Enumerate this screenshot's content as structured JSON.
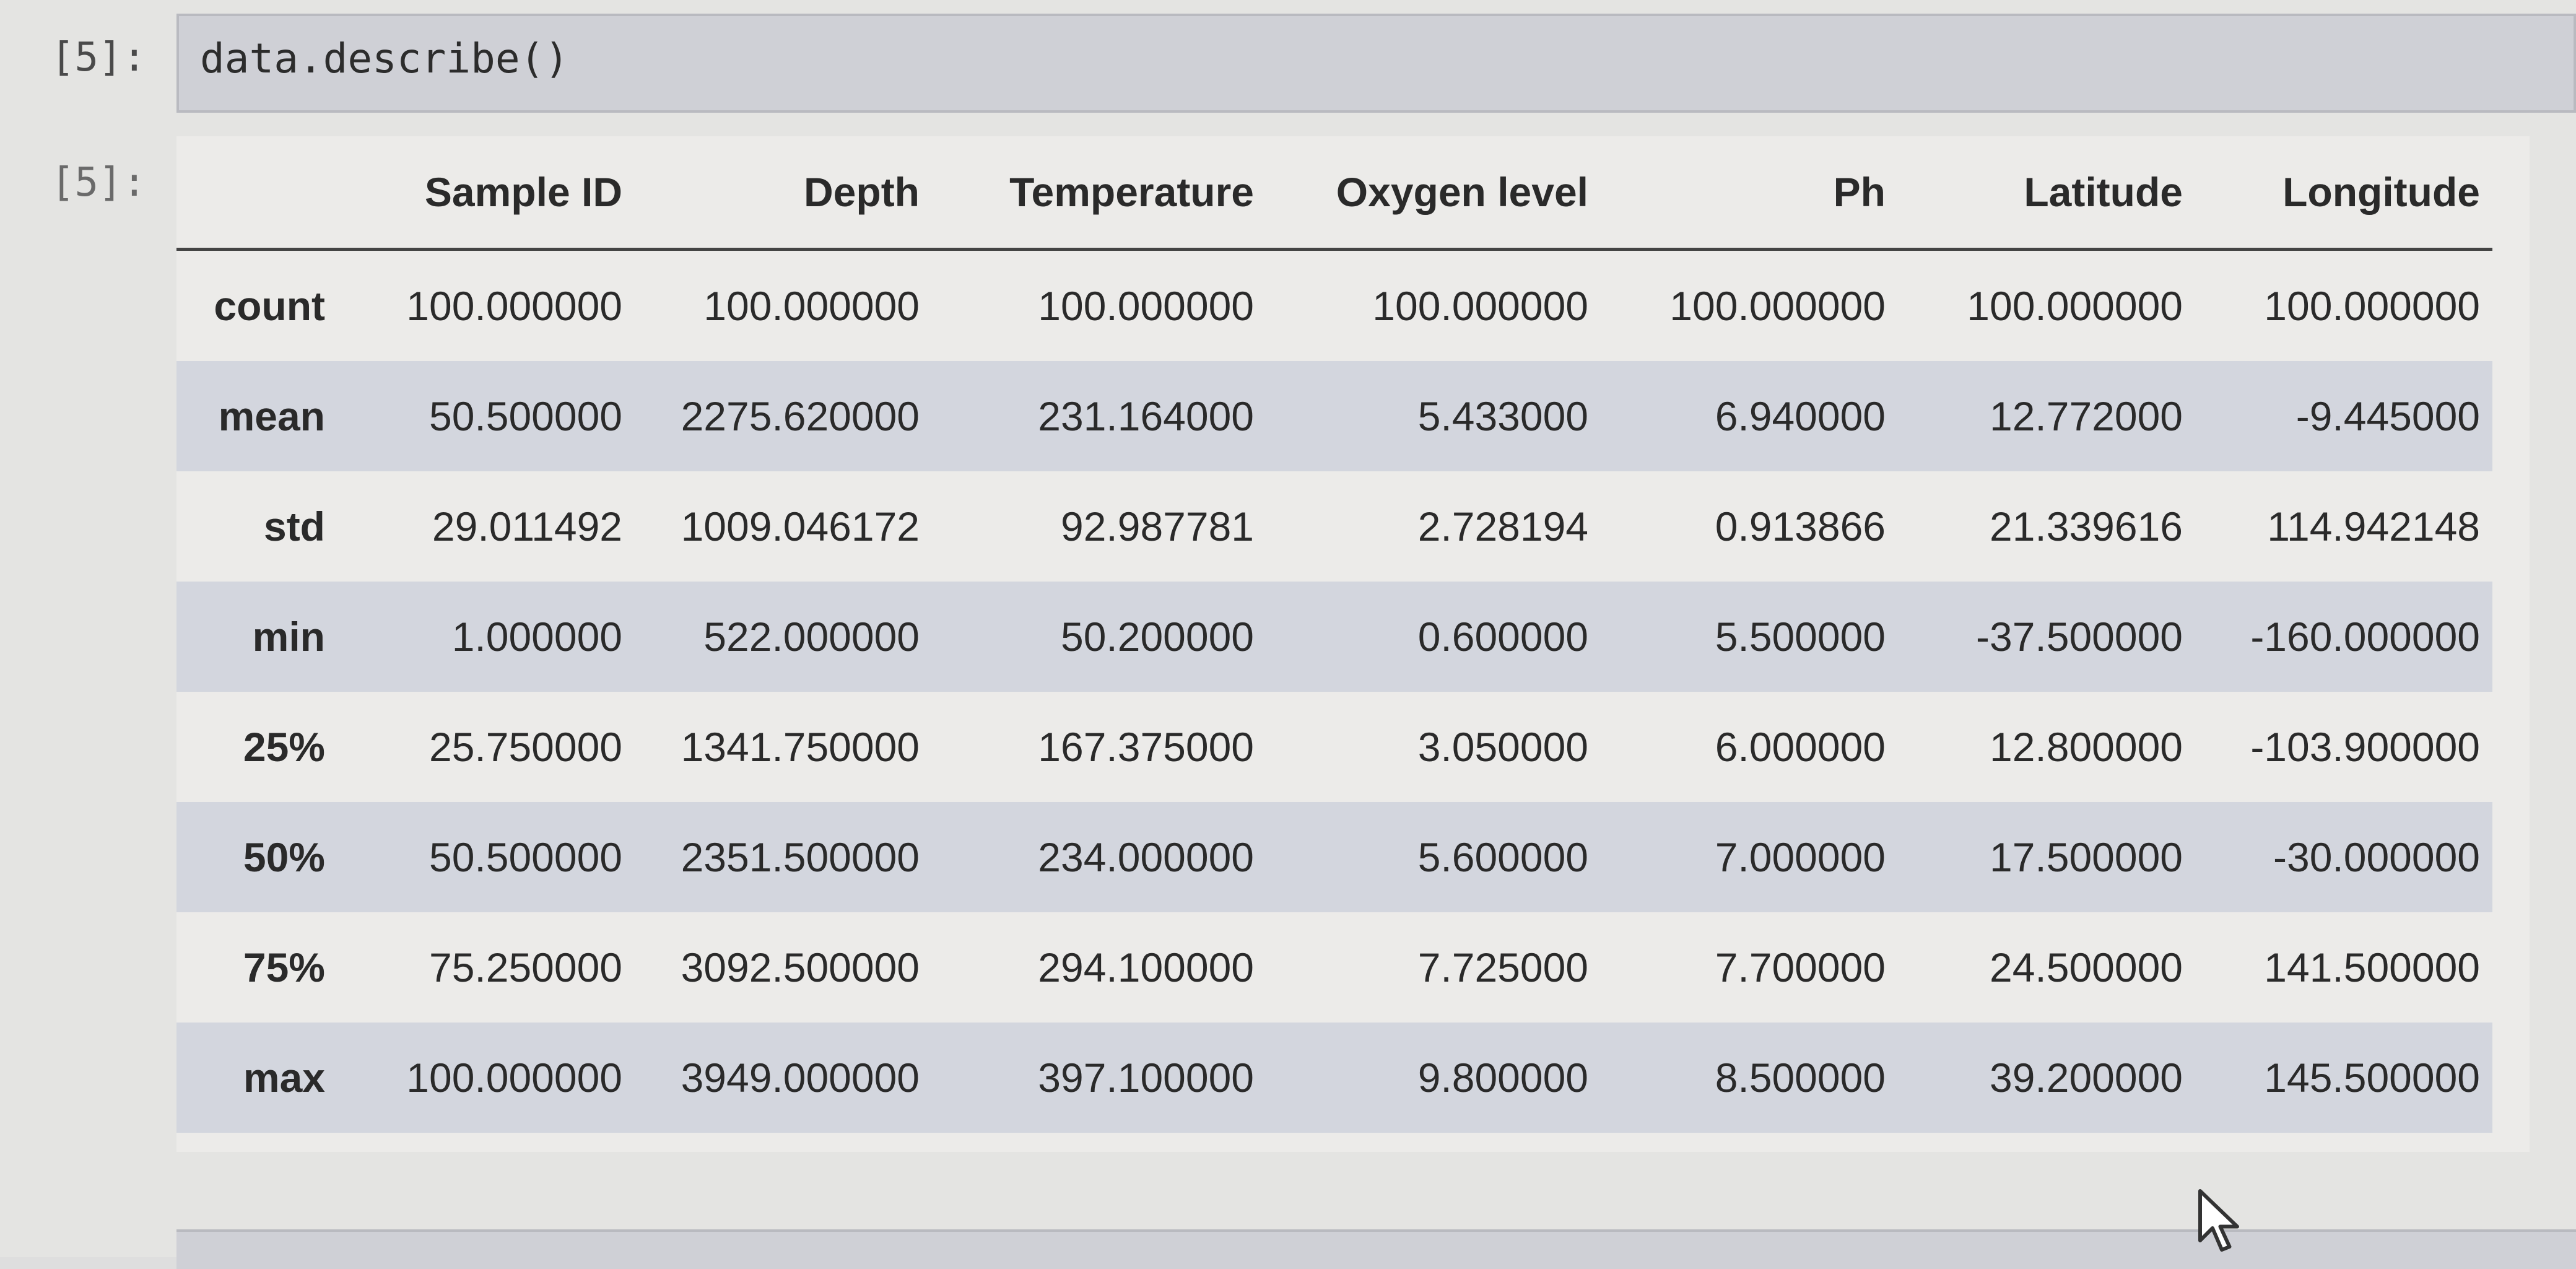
{
  "input_cell": {
    "prompt": "[5]:",
    "code": "data.describe()"
  },
  "output_cell": {
    "prompt": "[5]:"
  },
  "table": {
    "columns": [
      "",
      "Sample ID",
      "Depth",
      "Temperature",
      "Oxygen level",
      "Ph",
      "Latitude",
      "Longitude"
    ],
    "rows": [
      {
        "label": "count",
        "values": [
          "100.000000",
          "100.000000",
          "100.000000",
          "100.000000",
          "100.000000",
          "100.000000",
          "100.000000"
        ]
      },
      {
        "label": "mean",
        "values": [
          "50.500000",
          "2275.620000",
          "231.164000",
          "5.433000",
          "6.940000",
          "12.772000",
          "-9.445000"
        ]
      },
      {
        "label": "std",
        "values": [
          "29.011492",
          "1009.046172",
          "92.987781",
          "2.728194",
          "0.913866",
          "21.339616",
          "114.942148"
        ]
      },
      {
        "label": "min",
        "values": [
          "1.000000",
          "522.000000",
          "50.200000",
          "0.600000",
          "5.500000",
          "-37.500000",
          "-160.000000"
        ]
      },
      {
        "label": "25%",
        "values": [
          "25.750000",
          "1341.750000",
          "167.375000",
          "3.050000",
          "6.000000",
          "12.800000",
          "-103.900000"
        ]
      },
      {
        "label": "50%",
        "values": [
          "50.500000",
          "2351.500000",
          "234.000000",
          "5.600000",
          "7.000000",
          "17.500000",
          "-30.000000"
        ]
      },
      {
        "label": "75%",
        "values": [
          "75.250000",
          "3092.500000",
          "294.100000",
          "7.725000",
          "7.700000",
          "24.500000",
          "141.500000"
        ]
      },
      {
        "label": "max",
        "values": [
          "100.000000",
          "3949.000000",
          "397.100000",
          "9.800000",
          "8.500000",
          "39.200000",
          "145.500000"
        ]
      }
    ]
  },
  "colors": {
    "striped_row": "#d3d6de",
    "input_cell_bg": "#cfd0d6"
  },
  "icons": {
    "cursor": "mouse-pointer-icon"
  }
}
